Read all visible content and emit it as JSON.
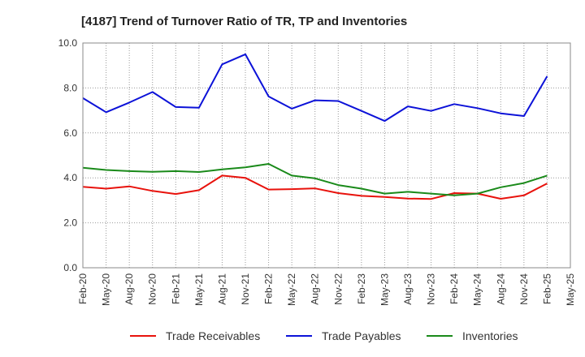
{
  "chart_data": {
    "type": "line",
    "title": "[4187]  Trend of Turnover Ratio of TR, TP and Inventories",
    "x": [
      "Feb-20",
      "May-20",
      "Aug-20",
      "Nov-20",
      "Feb-21",
      "May-21",
      "Aug-21",
      "Nov-21",
      "Feb-22",
      "May-22",
      "Aug-22",
      "Nov-22",
      "Feb-23",
      "May-23",
      "Aug-23",
      "Nov-23",
      "Feb-24",
      "May-24",
      "Aug-24",
      "Nov-24",
      "Feb-25"
    ],
    "x_ticks": [
      "Feb-20",
      "May-20",
      "Aug-20",
      "Nov-20",
      "Feb-21",
      "May-21",
      "Aug-21",
      "Nov-21",
      "Feb-22",
      "May-22",
      "Aug-22",
      "Nov-22",
      "Feb-23",
      "May-23",
      "Aug-23",
      "Nov-23",
      "Feb-24",
      "May-24",
      "Aug-24",
      "Nov-24",
      "Feb-25",
      "May-25"
    ],
    "y_ticks": [
      "0.0",
      "2.0",
      "4.0",
      "6.0",
      "8.0",
      "10.0"
    ],
    "ylim": [
      0,
      10
    ],
    "grid": true,
    "legend_position": "bottom",
    "series": [
      {
        "name": "Trade Receivables",
        "color": "#e8120c",
        "values": [
          3.6,
          3.52,
          3.62,
          3.42,
          3.28,
          3.45,
          4.1,
          4.0,
          3.48,
          3.5,
          3.53,
          3.32,
          3.2,
          3.15,
          3.08,
          3.06,
          3.32,
          3.3,
          3.07,
          3.22,
          3.75
        ]
      },
      {
        "name": "Trade Payables",
        "color": "#0c12d8",
        "values": [
          7.55,
          6.92,
          7.35,
          7.82,
          7.15,
          7.12,
          9.05,
          9.5,
          7.62,
          7.08,
          7.45,
          7.42,
          6.98,
          6.53,
          7.18,
          6.98,
          7.28,
          7.1,
          6.87,
          6.75,
          8.52
        ]
      },
      {
        "name": "Inventories",
        "color": "#1a8a1a",
        "values": [
          4.45,
          4.35,
          4.3,
          4.27,
          4.3,
          4.26,
          4.38,
          4.47,
          4.62,
          4.1,
          3.98,
          3.68,
          3.52,
          3.3,
          3.38,
          3.3,
          3.22,
          3.3,
          3.58,
          3.77,
          4.1
        ]
      }
    ]
  }
}
